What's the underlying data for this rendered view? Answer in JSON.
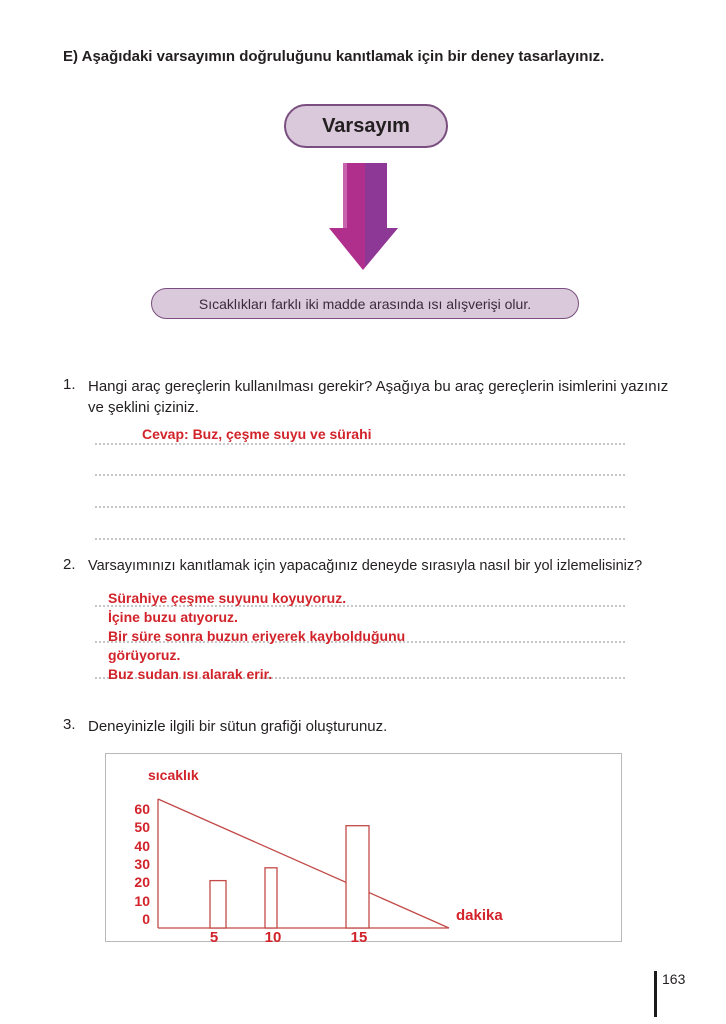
{
  "page": {
    "title": "E) Aşağıdaki varsayımın doğruluğunu kanıtlamak için bir deney tasarlayınız.",
    "page_number": "163"
  },
  "flowchart": {
    "hypothesis_label": "Varsayım",
    "result_text": "Sıcaklıkları farklı iki madde arasında ısı alışverişi olur.",
    "box_fill": "#d9c9da",
    "box_border": "#7a4f7f",
    "arrow_color_left": "#b02e8c",
    "arrow_color_right": "#8d3897",
    "arrow_highlight": "#c863ae"
  },
  "questions": [
    {
      "number": "1.",
      "text": "Hangi araç gereçlerin kullanılması gerekir? Aşağıya bu araç gereçlerin isimlerini yazınız ve şeklini çiziniz.",
      "answer": "Cevap: Buz, çeşme suyu ve sürahi"
    },
    {
      "number": "2.",
      "text": "Varsayımınızı kanıtlamak için yapacağınız deneyde sırasıyla nasıl bir yol izlemelisiniz?",
      "answer_lines": [
        "Sürahiye çeşme suyunu koyuyoruz.",
        "İçine buzu atıyoruz.",
        "Bir süre sonra buzun eriyerek kaybolduğunu",
        "görüyoruz.",
        "Buz sudan ısı alarak erir."
      ]
    },
    {
      "number": "3.",
      "text": "Deneyinizle ilgili bir sütun grafiği oluşturunuz."
    }
  ],
  "chart_data": {
    "type": "bar",
    "title": "",
    "xlabel": "dakika",
    "ylabel": "sıcaklık",
    "x": [
      5,
      10,
      15
    ],
    "values": [
      21,
      28,
      51
    ],
    "y_ticks": [
      60,
      50,
      40,
      30,
      20,
      10,
      0
    ],
    "x_ticks": [
      5,
      10,
      15
    ],
    "ylim": [
      0,
      65
    ],
    "grid": false,
    "legend": false,
    "accent_color": "#c34a48",
    "annotations": [
      "hand-drawn diagonal line falling from about 65 on the temperature axis to 0 at about 20 minutes"
    ]
  },
  "answer_colors": {
    "red": "#d2232a"
  }
}
